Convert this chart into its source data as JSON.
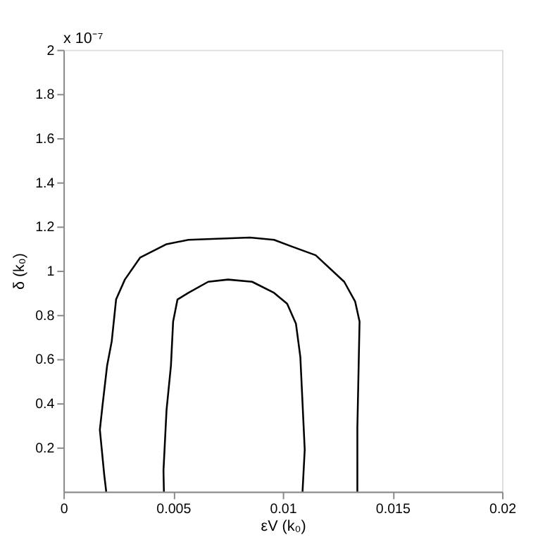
{
  "chart_data": {
    "type": "line",
    "xlabel": "εV (k₀)",
    "ylabel": "δ (k₀)",
    "annotations": [
      "x 10⁻⁷"
    ],
    "series": [
      {
        "color": "#000000",
        "x": [
          0.00195,
          0.00186,
          0.00166,
          0.00178,
          0.00199,
          0.0022,
          0.0024,
          0.0028,
          0.0035,
          0.0047,
          0.0057,
          0.0085,
          0.0096,
          0.0104,
          0.0115,
          0.0128,
          0.0133,
          0.0135,
          0.0134,
          0.0134
        ],
        "values": [
          0,
          0.075,
          0.28,
          0.39,
          0.57,
          0.68,
          0.87,
          0.96,
          1.06,
          1.12,
          1.14,
          1.15,
          1.14,
          1.11,
          1.07,
          0.95,
          0.86,
          0.77,
          0.29,
          0
        ]
      },
      {
        "color": "#000000",
        "x": [
          0.00458,
          0.00456,
          0.0047,
          0.0049,
          0.005,
          0.0052,
          0.0057,
          0.0066,
          0.0075,
          0.0086,
          0.0096,
          0.0102,
          0.0106,
          0.0108,
          0.011,
          0.0109
        ],
        "values": [
          0,
          0.095,
          0.37,
          0.57,
          0.77,
          0.87,
          0.9,
          0.95,
          0.96,
          0.95,
          0.9,
          0.85,
          0.76,
          0.61,
          0.19,
          0
        ]
      }
    ],
    "xlim": [
      0,
      0.02
    ],
    "xticks": [
      0,
      0.005,
      0.01,
      0.015,
      0.02
    ],
    "ylim": [
      0,
      2
    ],
    "yticks": [
      0.2,
      0.4,
      0.6,
      0.8,
      1,
      1.2,
      1.4,
      1.6,
      1.8,
      2
    ],
    "grid": false,
    "legend": false,
    "marker": "none",
    "line_style": "solid"
  }
}
